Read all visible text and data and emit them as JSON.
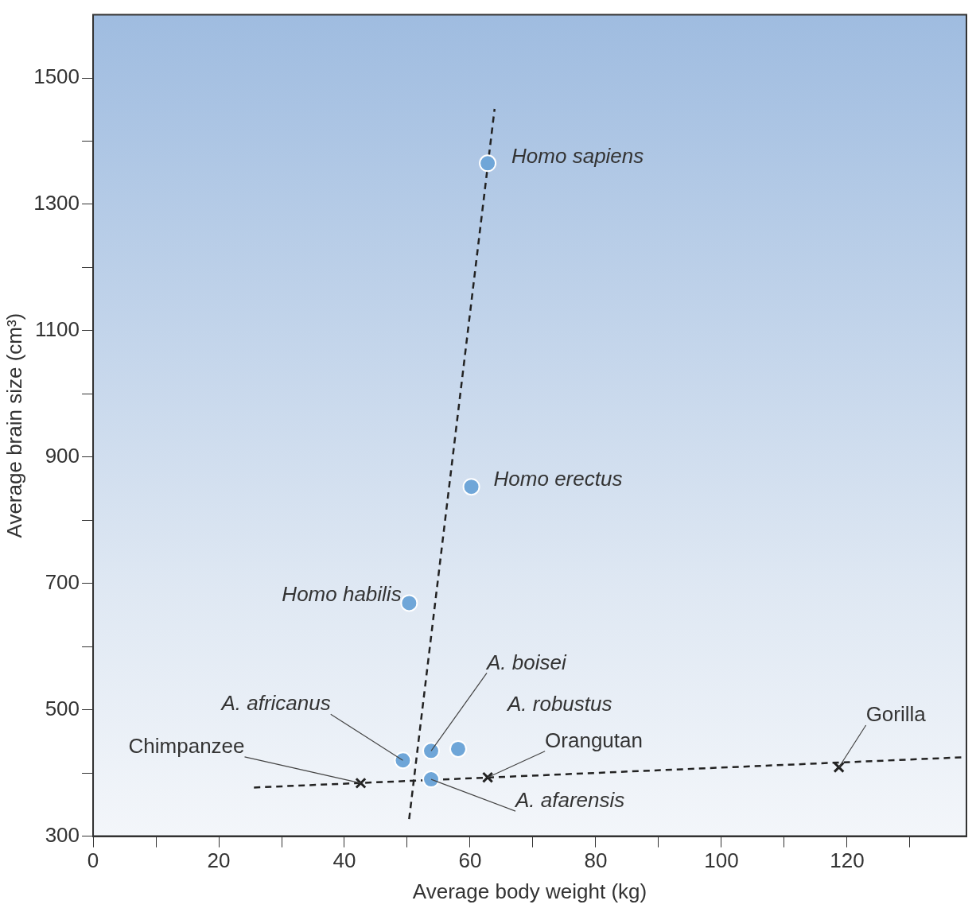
{
  "chart_data": {
    "type": "scatter",
    "xlabel": "Average body weight (kg)",
    "ylabel": "Average brain size (cm³)",
    "xlim": [
      0,
      139
    ],
    "ylim": [
      300,
      1600
    ],
    "xticks": [
      0,
      {
        "value": 10,
        "label": null
      },
      20,
      {
        "value": 30,
        "label": null
      },
      40,
      {
        "value": 50,
        "label": null
      },
      60,
      {
        "value": 70,
        "label": null
      },
      80,
      {
        "value": 90,
        "label": null
      },
      100,
      {
        "value": 110,
        "label": null
      },
      120,
      {
        "value": 130,
        "label": null
      }
    ],
    "yticks": [
      300,
      {
        "value": 400,
        "label": null
      },
      500,
      {
        "value": 600,
        "label": null
      },
      700,
      {
        "value": 800,
        "label": null
      },
      900,
      {
        "value": 1000,
        "label": null
      },
      1100,
      {
        "value": 1200,
        "label": null
      },
      1300,
      {
        "value": 1400,
        "label": null
      },
      1500
    ],
    "grid": false,
    "legend": false,
    "series": [
      {
        "marker": "circle",
        "color": "#6fa6d8",
        "x": [
          62.8,
          60.2,
          50.3,
          53.8,
          58.1,
          49.3,
          53.8
        ],
        "values": [
          1365,
          853,
          669,
          435,
          438,
          420,
          390
        ]
      },
      {
        "marker": "cross",
        "color": "#222222",
        "x": [
          42.6,
          62.8,
          118.7
        ],
        "values": [
          384,
          393,
          409
        ]
      },
      {
        "type": "line",
        "line_style": "dashed",
        "marker": "none",
        "color": "#222222",
        "x": [
          50.3,
          63.9
        ],
        "values": [
          327,
          1451
        ]
      },
      {
        "type": "line",
        "line_style": "dashed",
        "marker": "none",
        "color": "#222222",
        "x": [
          25.6,
          138.7
        ],
        "values": [
          377,
          425
        ]
      }
    ],
    "annotations": [
      {
        "text": "Homo sapiens",
        "x": 62.8,
        "y": 1365
      },
      {
        "text": "Homo erectus",
        "x": 60.2,
        "y": 853
      },
      {
        "text": "Homo habilis",
        "x": 50.3,
        "y": 669
      },
      {
        "text": "A. boisei",
        "x": 53.8,
        "y": 435
      },
      {
        "text": "A. robustus",
        "x": 58.1,
        "y": 438
      },
      {
        "text": "A. africanus",
        "x": 49.3,
        "y": 420
      },
      {
        "text": "A. afarensis",
        "x": 53.8,
        "y": 390
      },
      {
        "text": "Chimpanzee",
        "x": 42.6,
        "y": 384
      },
      {
        "text": "Orangutan",
        "x": 62.8,
        "y": 393
      },
      {
        "text": "Gorilla",
        "x": 118.7,
        "y": 409
      }
    ]
  }
}
